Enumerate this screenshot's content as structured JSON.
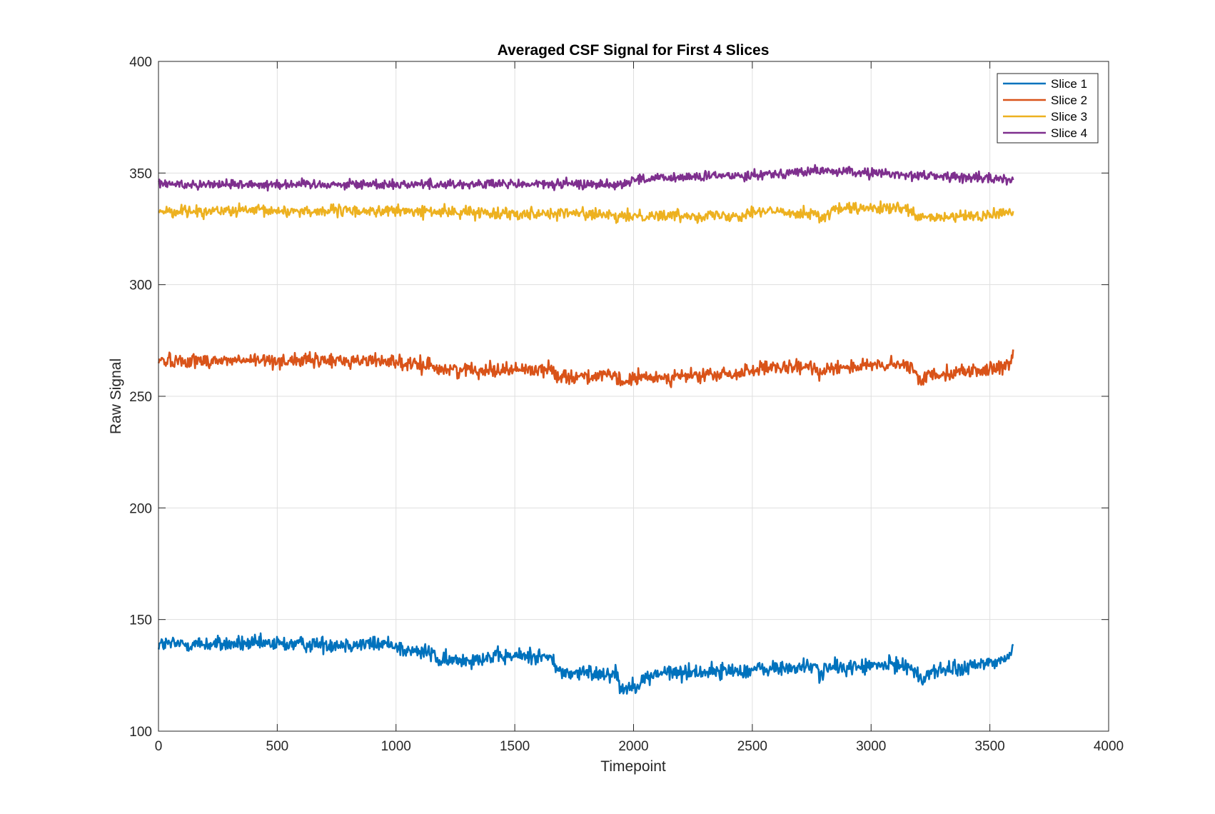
{
  "chart_data": {
    "type": "line",
    "title": "Averaged CSF Signal for First 4 Slices",
    "xlabel": "Timepoint",
    "ylabel": "Raw Signal",
    "xlim": [
      0,
      4000
    ],
    "ylim": [
      100,
      400
    ],
    "xticks": [
      0,
      500,
      1000,
      1500,
      2000,
      2500,
      3000,
      3500,
      4000
    ],
    "yticks": [
      100,
      150,
      200,
      250,
      300,
      350,
      400
    ],
    "xtick_labels": [
      "0",
      "500",
      "1000",
      "1500",
      "2000",
      "2500",
      "3000",
      "3500",
      "4000"
    ],
    "ytick_labels": [
      "100",
      "150",
      "200",
      "250",
      "300",
      "350",
      "400"
    ],
    "grid": true,
    "legend_position": "top-right",
    "x_range": [
      1,
      3600
    ],
    "series": [
      {
        "name": "Slice 1",
        "color": "#0072BD",
        "noise": 1.8,
        "trend": [
          [
            0,
            139
          ],
          [
            1000,
            139
          ],
          [
            1030,
            136
          ],
          [
            1160,
            135
          ],
          [
            1180,
            131
          ],
          [
            1370,
            133
          ],
          [
            1600,
            134
          ],
          [
            1660,
            132
          ],
          [
            1690,
            126
          ],
          [
            1930,
            126
          ],
          [
            1945,
            119
          ],
          [
            1990,
            120
          ],
          [
            2100,
            126
          ],
          [
            2400,
            127
          ],
          [
            2600,
            128
          ],
          [
            2770,
            129
          ],
          [
            2780,
            125
          ],
          [
            2800,
            128
          ],
          [
            3150,
            130
          ],
          [
            3190,
            126
          ],
          [
            3210,
            122
          ],
          [
            3250,
            127
          ],
          [
            3400,
            128
          ],
          [
            3460,
            130
          ],
          [
            3570,
            132
          ],
          [
            3600,
            139
          ]
        ]
      },
      {
        "name": "Slice 2",
        "color": "#D95319",
        "noise": 1.6,
        "trend": [
          [
            0,
            266
          ],
          [
            1000,
            266
          ],
          [
            1030,
            264
          ],
          [
            1160,
            264
          ],
          [
            1180,
            262
          ],
          [
            1650,
            262
          ],
          [
            1690,
            259
          ],
          [
            1920,
            259
          ],
          [
            1950,
            256
          ],
          [
            2000,
            258
          ],
          [
            2450,
            260
          ],
          [
            2480,
            262
          ],
          [
            2760,
            263
          ],
          [
            2790,
            260
          ],
          [
            2810,
            263
          ],
          [
            3150,
            264
          ],
          [
            3190,
            260
          ],
          [
            3210,
            257
          ],
          [
            3250,
            260
          ],
          [
            3500,
            262
          ],
          [
            3580,
            263
          ],
          [
            3600,
            270
          ]
        ]
      },
      {
        "name": "Slice 3",
        "color": "#EDB120",
        "noise": 1.3,
        "trend": [
          [
            0,
            333
          ],
          [
            1000,
            333
          ],
          [
            1500,
            332
          ],
          [
            1800,
            332
          ],
          [
            1950,
            330
          ],
          [
            2000,
            331
          ],
          [
            2450,
            331
          ],
          [
            2500,
            333
          ],
          [
            2770,
            332
          ],
          [
            2790,
            329
          ],
          [
            2850,
            334
          ],
          [
            3150,
            334
          ],
          [
            3190,
            330
          ],
          [
            3300,
            330
          ],
          [
            3500,
            331
          ],
          [
            3600,
            333
          ]
        ]
      },
      {
        "name": "Slice 4",
        "color": "#7E2F8E",
        "noise": 1.1,
        "trend": [
          [
            0,
            345
          ],
          [
            1500,
            345
          ],
          [
            1950,
            345
          ],
          [
            2000,
            347
          ],
          [
            2200,
            348
          ],
          [
            2450,
            349
          ],
          [
            2800,
            351
          ],
          [
            3000,
            350
          ],
          [
            3200,
            349
          ],
          [
            3600,
            347
          ]
        ]
      }
    ]
  }
}
